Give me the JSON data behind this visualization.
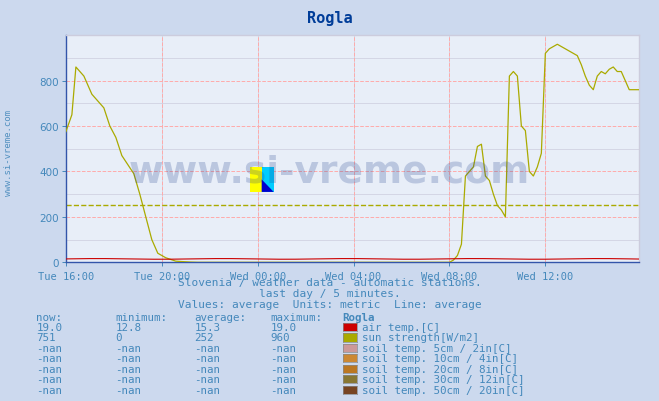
{
  "title": "Rogla",
  "title_color": "#003d99",
  "bg_color": "#ccd9ee",
  "plot_bg_color": "#e8eef8",
  "fig_size": [
    6.59,
    4.02
  ],
  "dpi": 100,
  "ylim": [
    0,
    1000
  ],
  "yticks": [
    0,
    200,
    400,
    600,
    800
  ],
  "grid_color_major": "#ffaaaa",
  "grid_color_minor": "#ccccdd",
  "avg_line_color": "#aaaa00",
  "avg_line_value": 252,
  "watermark_text": "www.si-vreme.com",
  "watermark_color": "#1a3a8a",
  "watermark_alpha": 0.22,
  "spine_color": "#4466aa",
  "tick_color": "#4488bb",
  "subtitle1": "Slovenia / weather data - automatic stations.",
  "subtitle2": "last day / 5 minutes.",
  "subtitle3": "Values: average  Units: metric  Line: average",
  "subtitle_color": "#4488bb",
  "subtitle_fontsize": 8.0,
  "xtick_labels": [
    "Tue 16:00",
    "Tue 20:00",
    "Wed 00:00",
    "Wed 04:00",
    "Wed 08:00",
    "Wed 12:00"
  ],
  "xtick_positions": [
    0,
    48,
    96,
    144,
    192,
    240
  ],
  "total_points": 288,
  "sun_color": "#aaaa00",
  "air_color": "#cc0000",
  "legend_items": [
    {
      "label": "air temp.[C]",
      "color": "#cc0000",
      "now": "19.0",
      "min": "12.8",
      "avg": "15.3",
      "max": "19.0"
    },
    {
      "label": "sun strength[W/m2]",
      "color": "#aaaa00",
      "now": "751",
      "min": "0",
      "avg": "252",
      "max": "960"
    },
    {
      "label": "soil temp. 5cm / 2in[C]",
      "color": "#cc9999",
      "now": "-nan",
      "min": "-nan",
      "avg": "-nan",
      "max": "-nan"
    },
    {
      "label": "soil temp. 10cm / 4in[C]",
      "color": "#cc8833",
      "now": "-nan",
      "min": "-nan",
      "avg": "-nan",
      "max": "-nan"
    },
    {
      "label": "soil temp. 20cm / 8in[C]",
      "color": "#bb7722",
      "now": "-nan",
      "min": "-nan",
      "avg": "-nan",
      "max": "-nan"
    },
    {
      "label": "soil temp. 30cm / 12in[C]",
      "color": "#887733",
      "now": "-nan",
      "min": "-nan",
      "avg": "-nan",
      "max": "-nan"
    },
    {
      "label": "soil temp. 50cm / 20in[C]",
      "color": "#774422",
      "now": "-nan",
      "min": "-nan",
      "avg": "-nan",
      "max": "-nan"
    }
  ],
  "left_label": "www.si-vreme.com",
  "left_label_color": "#4488bb",
  "col_headers": [
    "now:",
    "minimum:",
    "average:",
    "maximum:",
    "Rogla"
  ],
  "logo_yellow": "#ffff00",
  "logo_cyan": "#00ccff",
  "logo_blue": "#0000cc"
}
